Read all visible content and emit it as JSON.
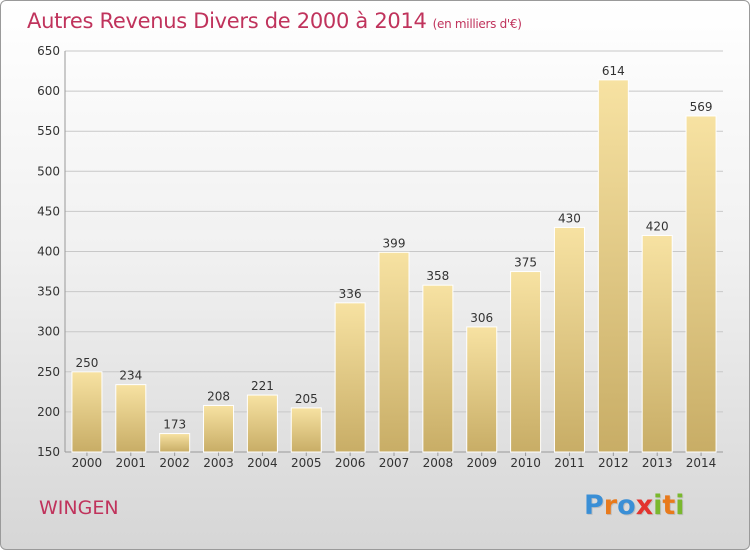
{
  "title": "Autres Revenus Divers de 2000 à 2014",
  "subtitle": "(en milliers d'€)",
  "place_label": "WINGEN",
  "logo": {
    "text": "Proxiti",
    "letters": [
      "P",
      "r",
      "o",
      "x",
      "i",
      "t",
      "i"
    ],
    "letter_colors": [
      "#3a8fd6",
      "#e87a1c",
      "#3a8fd6",
      "#e3342f",
      "#7ab82e",
      "#e87a1c",
      "#7ab82e"
    ]
  },
  "colors": {
    "title": "#c0335c",
    "bar_top": "#f7e2a2",
    "bar_bottom": "#c8ad66",
    "grid": "#c8c8c8",
    "axis_text": "#333333"
  },
  "chart_data": {
    "type": "bar",
    "title": "Autres Revenus Divers de 2000 à 2014",
    "subtitle": "(en milliers d'€)",
    "categories": [
      "2000",
      "2001",
      "2002",
      "2003",
      "2004",
      "2005",
      "2006",
      "2007",
      "2008",
      "2009",
      "2010",
      "2011",
      "2012",
      "2013",
      "2014"
    ],
    "values": [
      250,
      234,
      173,
      208,
      221,
      205,
      336,
      399,
      358,
      306,
      375,
      430,
      614,
      420,
      569
    ],
    "ylim": [
      150,
      650
    ],
    "yticks": [
      150,
      200,
      250,
      300,
      350,
      400,
      450,
      500,
      550,
      600,
      650
    ],
    "xlabel": "",
    "ylabel": "",
    "grid": true,
    "data_labels": true
  }
}
